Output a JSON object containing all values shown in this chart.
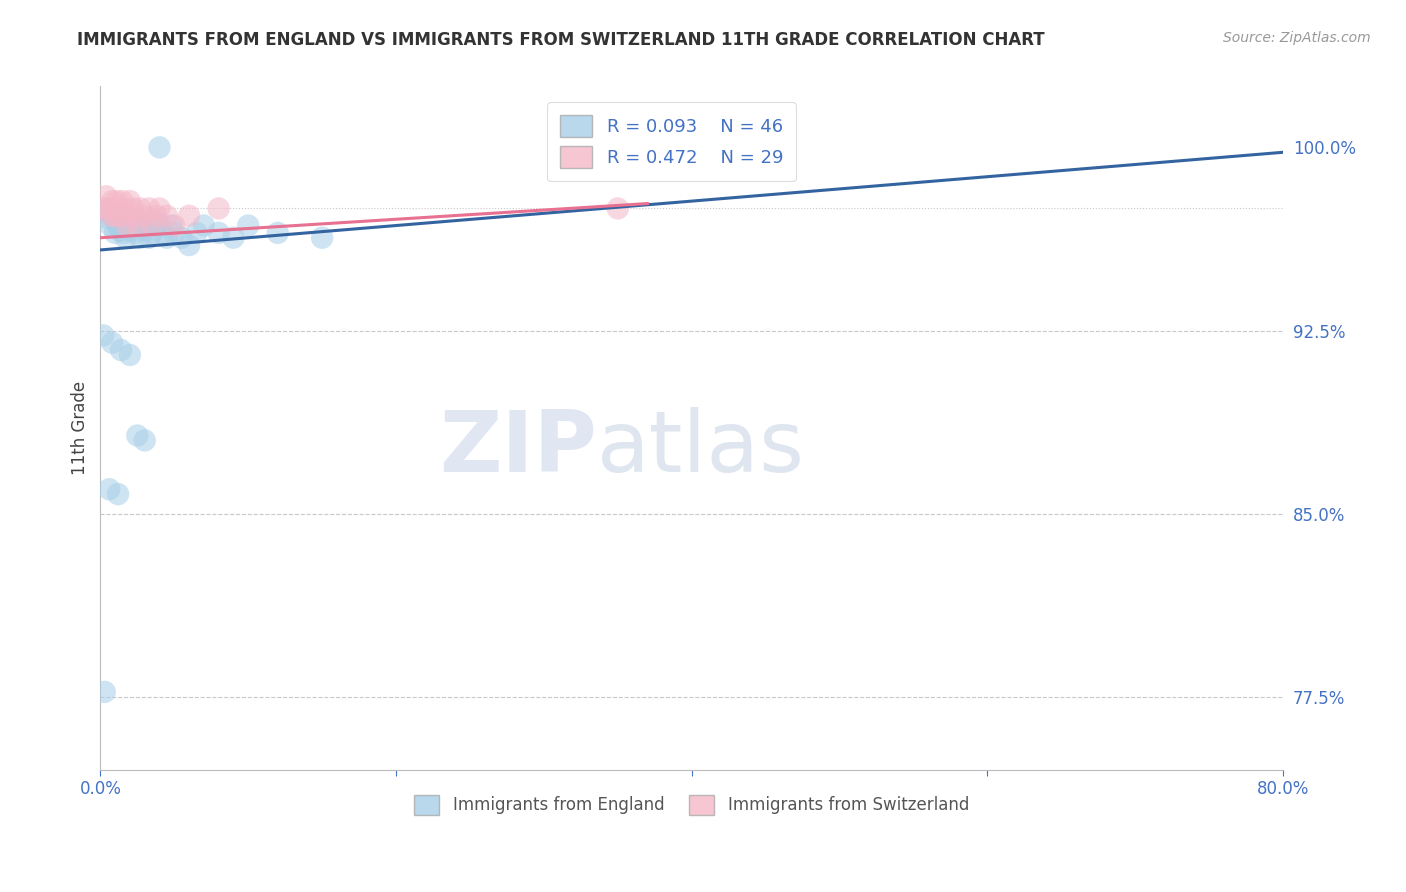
{
  "title": "IMMIGRANTS FROM ENGLAND VS IMMIGRANTS FROM SWITZERLAND 11TH GRADE CORRELATION CHART",
  "source_text": "Source: ZipAtlas.com",
  "ylabel": "11th Grade",
  "legend_label_blue": "Immigrants from England",
  "legend_label_pink": "Immigrants from Switzerland",
  "watermark_zip": "ZIP",
  "watermark_atlas": "atlas",
  "xlim": [
    0.0,
    0.8
  ],
  "ylim": [
    0.745,
    1.025
  ],
  "blue_r": 0.093,
  "blue_n": 46,
  "pink_r": 0.472,
  "pink_n": 29,
  "blue_color": "#a8cfe8",
  "pink_color": "#f4b8c8",
  "blue_line_color": "#3464a0",
  "pink_line_color": "#e87090",
  "axis_color": "#4472c4",
  "grid_color": "#c8c8c8",
  "blue_scatter_x": [
    0.003,
    0.005,
    0.007,
    0.008,
    0.01,
    0.011,
    0.012,
    0.013,
    0.015,
    0.016,
    0.017,
    0.018,
    0.02,
    0.022,
    0.023,
    0.025,
    0.027,
    0.028,
    0.03,
    0.033,
    0.035,
    0.038,
    0.04,
    0.042,
    0.045,
    0.048,
    0.05,
    0.055,
    0.06,
    0.065,
    0.07,
    0.08,
    0.09,
    0.1,
    0.12,
    0.15,
    0.002,
    0.008,
    0.014,
    0.02,
    0.025,
    0.03,
    0.006,
    0.012,
    0.003,
    0.04
  ],
  "blue_scatter_y": [
    0.974,
    0.971,
    0.968,
    0.972,
    0.965,
    0.97,
    0.968,
    0.966,
    0.972,
    0.965,
    0.963,
    0.97,
    0.966,
    0.968,
    0.965,
    0.97,
    0.963,
    0.968,
    0.966,
    0.963,
    0.965,
    0.97,
    0.968,
    0.965,
    0.963,
    0.968,
    0.965,
    0.963,
    0.96,
    0.965,
    0.968,
    0.965,
    0.963,
    0.968,
    0.965,
    0.963,
    0.923,
    0.92,
    0.917,
    0.915,
    0.882,
    0.88,
    0.86,
    0.858,
    0.777,
    1.0
  ],
  "pink_scatter_x": [
    0.003,
    0.004,
    0.006,
    0.007,
    0.008,
    0.009,
    0.01,
    0.011,
    0.012,
    0.013,
    0.015,
    0.016,
    0.017,
    0.018,
    0.02,
    0.022,
    0.024,
    0.025,
    0.027,
    0.03,
    0.033,
    0.035,
    0.038,
    0.04,
    0.045,
    0.05,
    0.06,
    0.08,
    0.35
  ],
  "pink_scatter_y": [
    0.975,
    0.98,
    0.975,
    0.972,
    0.978,
    0.975,
    0.972,
    0.978,
    0.975,
    0.972,
    0.978,
    0.975,
    0.972,
    0.968,
    0.978,
    0.975,
    0.972,
    0.968,
    0.975,
    0.972,
    0.975,
    0.968,
    0.972,
    0.975,
    0.972,
    0.968,
    0.972,
    0.975,
    0.975
  ],
  "blue_trend_x": [
    0.0,
    0.8
  ],
  "blue_trend_y": [
    0.958,
    0.998
  ],
  "pink_trend_x": [
    0.0,
    0.37
  ],
  "pink_trend_y": [
    0.963,
    0.977
  ]
}
